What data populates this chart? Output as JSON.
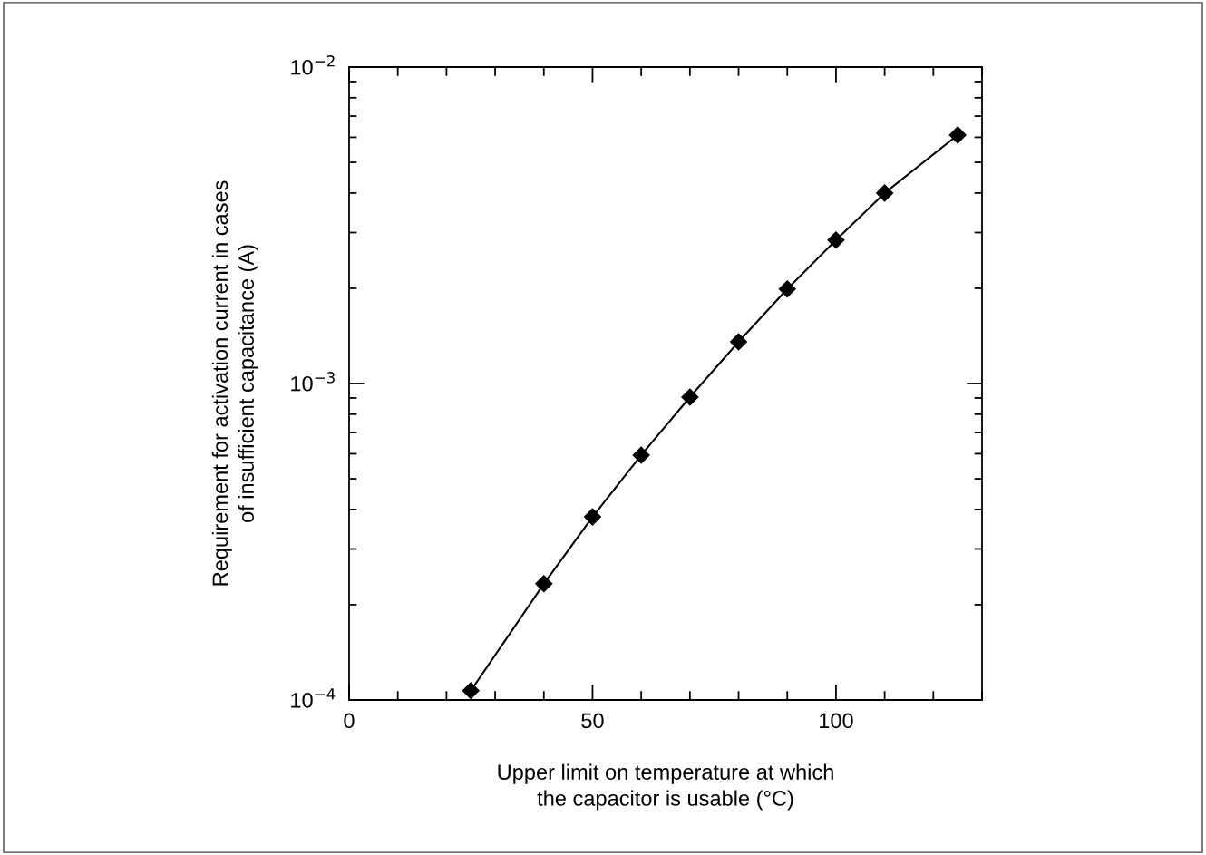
{
  "chart_data": {
    "type": "line",
    "xlabel": "Upper limit on temperature at which\nthe capacitor is usable (°C)",
    "ylabel": "Requirement for activation current in cases\nof insufficient capacitance (A)",
    "x": [
      25,
      40,
      50,
      60,
      70,
      80,
      90,
      100,
      110,
      125
    ],
    "series": [
      {
        "color": "#000000",
        "values": [
          0.000107,
          0.000233,
          0.000379,
          0.000594,
          0.000906,
          0.001355,
          0.00199,
          0.00284,
          0.004,
          0.0061
        ]
      }
    ],
    "marker": "diamond",
    "line_style": "solid",
    "log": "y",
    "grid": false,
    "legend": false,
    "xlim": [
      0,
      130
    ],
    "xticks": [
      0,
      {
        "value": 10,
        "label": null
      },
      {
        "value": 20,
        "label": null
      },
      {
        "value": 30,
        "label": null
      },
      {
        "value": 40,
        "label": null
      },
      50,
      {
        "value": 60,
        "label": null
      },
      {
        "value": 70,
        "label": null
      },
      {
        "value": 80,
        "label": null
      },
      {
        "value": 90,
        "label": null
      },
      100,
      {
        "value": 110,
        "label": null
      },
      {
        "value": 120,
        "label": null
      },
      {
        "value": 130,
        "label": null
      }
    ],
    "ylim": [
      0.0001,
      0.01
    ],
    "yticks": [
      {
        "value": 0.0001,
        "label": "10$^{−4}$"
      },
      {
        "value": 0.001,
        "label": "10$^{−3}$"
      },
      {
        "value": 0.01,
        "label": "10$^{−2}$"
      }
    ]
  }
}
